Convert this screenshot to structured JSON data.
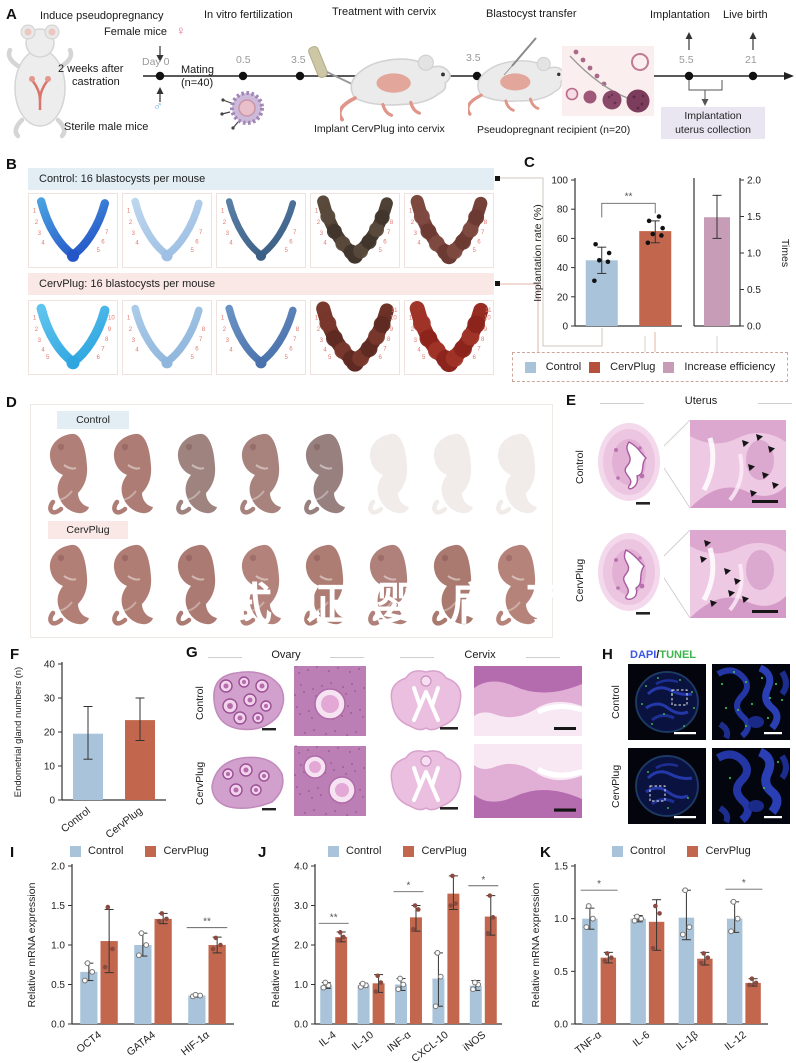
{
  "colors": {
    "control": "#a9c4da",
    "cervplug": "#c2674d",
    "increase": "#c69cb7",
    "control_bg": "#e2edf4",
    "cervplug_bg": "#f9e8e5",
    "collection_box_bg": "#e9e6f1",
    "site_number": "#e07a72",
    "dapi": "#3a56e8",
    "tunel": "#3cb54c"
  },
  "panel_a": {
    "label": "A",
    "titles": {
      "induce": "Induce pseudopregnancy",
      "ivf": "In vitro fertilization",
      "treatment": "Treatment with cervix",
      "transfer": "Blastocyst transfer",
      "implantation": "Implantation",
      "live_birth": "Live birth"
    },
    "female_mice": "Female mice",
    "female_symbol": "♀",
    "male_symbol": "♂",
    "castration_line1": "2 weeks after",
    "castration_line2": "castration",
    "sterile_male": "Sterile male mice",
    "day0": "Day 0",
    "mating_line1": "Mating",
    "mating_line2": "(n=40)",
    "t_05": "0.5",
    "t_35a": "3.5",
    "t_35b": "3.5",
    "t_55": "5.5",
    "t_21": "21",
    "implant_caption": "Implant CervPlug into cervix",
    "recipient_caption": "Pseudopregnant recipient (n=20)",
    "collection_line1": "Implantation",
    "collection_line2": "uterus collection"
  },
  "panel_b": {
    "label": "B",
    "control_header": "Control: 16 blastocysts per mouse",
    "cervplug_header": "CervPlug: 16 blastocysts per mouse",
    "control_uteri": [
      {
        "color": "#2456c8",
        "color2": "#4aa0e0",
        "sites": 7,
        "width": 9
      },
      {
        "color": "#9fc0e4",
        "color2": "#bcd6ee",
        "sites": 7,
        "width": 8
      },
      {
        "color": "#3c5f86",
        "color2": "#5a7fa6",
        "sites": 7,
        "width": 7
      },
      {
        "color": "#41362c",
        "color2": "#5a4a3c",
        "sites": 8,
        "width": 13
      },
      {
        "color": "#6b3a32",
        "color2": "#7e4a40",
        "sites": 8,
        "width": 14
      }
    ],
    "cervplug_uteri": [
      {
        "color": "#2fa6e0",
        "color2": "#60c4ee",
        "sites": 10,
        "width": 10
      },
      {
        "color": "#8fb6dd",
        "color2": "#aacbe8",
        "sites": 8,
        "width": 8
      },
      {
        "color": "#4a72ac",
        "color2": "#6a92c4",
        "sites": 8,
        "width": 8
      },
      {
        "color": "#5e2a22",
        "color2": "#79382c",
        "sites": 11,
        "width": 15
      },
      {
        "color": "#8c241c",
        "color2": "#a03428",
        "sites": 11,
        "width": 16
      }
    ]
  },
  "panel_c": {
    "label": "C",
    "legend": [
      {
        "label": "Control",
        "color": "#a9c4da"
      },
      {
        "label": "CervPlug",
        "color": "#b5503c"
      },
      {
        "label": "Increase efficiency",
        "color": "#c69cb7"
      }
    ]
  },
  "panel_d": {
    "label": "D",
    "control_tag": "Control",
    "cervplug_tag": "CervPlug",
    "control_pup_colors": [
      "#b08078",
      "#ad7d75",
      "#9e837e",
      "#a8827c",
      "#97807e",
      "#f1ebe9",
      "#f1ebe9",
      "#f1ebe9"
    ],
    "cervplug_pup_colors": [
      "#b27f77",
      "#af7d74",
      "#ab7a72",
      "#b3837b",
      "#ad7c73",
      "#b0807a",
      "#aa7970",
      "#b5837a"
    ],
    "watermark": "式证婴肩了"
  },
  "panel_e": {
    "label": "E",
    "title": "Uterus",
    "row_labels": [
      "Control",
      "CervPlug"
    ]
  },
  "panel_f": {
    "label": "F"
  },
  "panel_g": {
    "label": "G",
    "col_headers": [
      "Ovary",
      "Cervix"
    ],
    "row_labels": [
      "Control",
      "CervPlug"
    ]
  },
  "panel_h": {
    "label": "H",
    "title_dapi": "DAPI",
    "title_sep": "/",
    "title_tunel": "TUNEL",
    "row_labels": [
      "Control",
      "CervPlug"
    ]
  },
  "panel_i": {
    "label": "I",
    "legend": [
      {
        "label": "Control",
        "color": "#a9c4da"
      },
      {
        "label": "CervPlug",
        "color": "#c2674d"
      }
    ]
  },
  "panel_j": {
    "label": "J",
    "legend": [
      {
        "label": "Control",
        "color": "#a9c4da"
      },
      {
        "label": "CervPlug",
        "color": "#c2674d"
      }
    ]
  },
  "panel_k": {
    "label": "K",
    "legend": [
      {
        "label": "Control",
        "color": "#a9c4da"
      },
      {
        "label": "CervPlug",
        "color": "#c2674d"
      }
    ]
  },
  "chart_data": [
    {
      "id": "implantation-rate",
      "type": "bar",
      "ylabel": "Implantation rate (%)",
      "ylim": [
        0,
        100
      ],
      "yticks": [
        0,
        20,
        40,
        60,
        80,
        100
      ],
      "dp": 0,
      "categories": [
        "Control",
        "CervPlug"
      ],
      "series": [
        {
          "name": "rate",
          "colors": [
            "#a9c4da",
            "#c2674d"
          ],
          "values": [
            45,
            65
          ],
          "err": [
            [
              36,
              54
            ],
            [
              57,
              72
            ]
          ],
          "points": [
            [
              31,
              44,
              45,
              50,
              56
            ],
            [
              57,
              62,
              63,
              67,
              72,
              75
            ]
          ],
          "pt": "filled",
          "ptcolor": "#111111"
        }
      ],
      "xlabels": false,
      "bracket": {
        "from": 0,
        "to": 1,
        "y": 84,
        "label": "**"
      }
    },
    {
      "id": "increase-efficiency",
      "type": "bar",
      "ylabel": "Times",
      "ylim": [
        0,
        2
      ],
      "yticks": [
        0,
        0.5,
        1.0,
        1.5,
        2.0
      ],
      "dp": 1,
      "categories": [
        "Increase efficiency"
      ],
      "series": [
        {
          "name": "times",
          "colors": [
            "#c69cb7"
          ],
          "values": [
            1.49
          ],
          "err": [
            [
              1.2,
              1.79
            ]
          ]
        }
      ],
      "xlabels": false
    },
    {
      "id": "endometrial-gland-numbers",
      "type": "bar",
      "ylabel": "Endometrial gland numbers (n)",
      "ylim": [
        0,
        40
      ],
      "yticks": [
        0,
        10,
        20,
        30,
        40
      ],
      "dp": 0,
      "categories": [
        "Control",
        "CervPlug"
      ],
      "series": [
        {
          "name": "glands",
          "colors": [
            "#a9c4da",
            "#c2674d"
          ],
          "values": [
            19.5,
            23.5
          ],
          "err": [
            [
              12,
              27.5
            ],
            [
              17.5,
              30
            ]
          ]
        }
      ],
      "xlabels": true
    },
    {
      "id": "mrna-oct4-gata4-hif1a",
      "type": "bar",
      "ylabel": "Relative mRNA expression",
      "ylim": [
        0,
        2
      ],
      "yticks": [
        0,
        0.5,
        1.0,
        1.5,
        2.0
      ],
      "dp": 1,
      "categories": [
        "OCT4",
        "GATA4",
        "HIF-1α"
      ],
      "series": [
        {
          "name": "Control",
          "color": "#a9c4da",
          "values": [
            0.66,
            1.0,
            0.36
          ],
          "err": [
            [
              0.55,
              0.77
            ],
            [
              0.86,
              1.15
            ],
            [
              0.34,
              0.38
            ]
          ],
          "points": [
            [
              0.55,
              0.66,
              0.77
            ],
            [
              0.87,
              1.0,
              1.15
            ],
            [
              0.35,
              0.36,
              0.37
            ]
          ],
          "pt": "open"
        },
        {
          "name": "CervPlug",
          "color": "#c2674d",
          "values": [
            1.05,
            1.33,
            1.0
          ],
          "err": [
            [
              0.65,
              1.45
            ],
            [
              1.27,
              1.4
            ],
            [
              0.9,
              1.1
            ]
          ],
          "points": [
            [
              0.72,
              0.95,
              1.48
            ],
            [
              1.3,
              1.33,
              1.4
            ],
            [
              0.95,
              1.0,
              1.09
            ]
          ],
          "pt": "filled",
          "ptcolor": "#8a4a40"
        }
      ],
      "xlabels": true,
      "sig": [
        {
          "i": 2,
          "y": 1.22,
          "label": "**"
        }
      ]
    },
    {
      "id": "mrna-cytokines-up",
      "type": "bar",
      "ylabel": "Relative mRNA expression",
      "ylim": [
        0,
        4
      ],
      "yticks": [
        0,
        1.0,
        2.0,
        3.0,
        4.0
      ],
      "dp": 1,
      "categories": [
        "IL-4",
        "IL-10",
        "INF-α",
        "CXCL-10",
        "iNOS"
      ],
      "series": [
        {
          "name": "Control",
          "color": "#a9c4da",
          "values": [
            0.97,
            0.98,
            1.0,
            1.15,
            0.97
          ],
          "err": [
            [
              0.9,
              1.05
            ],
            [
              0.93,
              1.03
            ],
            [
              0.85,
              1.15
            ],
            [
              0.45,
              1.8
            ],
            [
              0.85,
              1.1
            ]
          ],
          "points": [
            [
              0.92,
              0.98,
              1.05
            ],
            [
              0.94,
              0.98,
              1.02
            ],
            [
              0.88,
              1.0,
              1.15
            ],
            [
              0.45,
              1.2,
              1.8
            ],
            [
              0.88,
              1.0,
              1.05
            ]
          ],
          "pt": "open"
        },
        {
          "name": "CervPlug",
          "color": "#c2674d",
          "values": [
            2.2,
            1.03,
            2.7,
            3.3,
            2.72
          ],
          "err": [
            [
              2.08,
              2.33
            ],
            [
              0.8,
              1.25
            ],
            [
              2.35,
              3.0
            ],
            [
              2.9,
              3.75
            ],
            [
              2.25,
              3.25
            ]
          ],
          "points": [
            [
              2.12,
              2.2,
              2.32
            ],
            [
              0.82,
              1.05,
              1.22
            ],
            [
              2.4,
              2.9,
              3.0
            ],
            [
              3.0,
              3.05,
              3.75
            ],
            [
              2.3,
              2.7,
              3.25
            ]
          ],
          "pt": "filled",
          "ptcolor": "#8a4a40"
        }
      ],
      "xlabels": true,
      "sig": [
        {
          "i": 0,
          "y": 2.55,
          "label": "**"
        },
        {
          "i": 2,
          "y": 3.35,
          "label": "*"
        },
        {
          "i": 4,
          "y": 3.5,
          "label": "*"
        }
      ]
    },
    {
      "id": "mrna-cytokines-down",
      "type": "bar",
      "ylabel": "Relative mRNA expression",
      "ylim": [
        0,
        1.5
      ],
      "yticks": [
        0,
        0.5,
        1.0,
        1.5
      ],
      "dp": 1,
      "categories": [
        "TNF-α",
        "IL-6",
        "IL-1β",
        "IL-12"
      ],
      "series": [
        {
          "name": "Control",
          "color": "#a9c4da",
          "values": [
            1.0,
            1.0,
            1.01,
            1.0
          ],
          "err": [
            [
              0.9,
              1.1
            ],
            [
              0.97,
              1.03
            ],
            [
              0.8,
              1.27
            ],
            [
              0.87,
              1.16
            ]
          ],
          "points": [
            [
              0.92,
              1.0,
              1.12
            ],
            [
              0.98,
              1.0,
              1.02
            ],
            [
              0.85,
              0.92,
              1.27
            ],
            [
              0.88,
              1.0,
              1.16
            ]
          ],
          "pt": "open"
        },
        {
          "name": "CervPlug",
          "color": "#c2674d",
          "values": [
            0.63,
            0.97,
            0.62,
            0.39
          ],
          "err": [
            [
              0.58,
              0.68
            ],
            [
              0.7,
              1.18
            ],
            [
              0.56,
              0.68
            ],
            [
              0.36,
              0.43
            ]
          ],
          "points": [
            [
              0.6,
              0.63,
              0.67
            ],
            [
              0.72,
              1.05,
              1.12
            ],
            [
              0.58,
              0.63,
              0.67
            ],
            [
              0.37,
              0.39,
              0.43
            ]
          ],
          "pt": "filled",
          "ptcolor": "#8a4a40"
        }
      ],
      "xlabels": true,
      "sig": [
        {
          "i": 0,
          "y": 1.27,
          "label": "*"
        },
        {
          "i": 3,
          "y": 1.28,
          "label": "*"
        }
      ]
    }
  ]
}
